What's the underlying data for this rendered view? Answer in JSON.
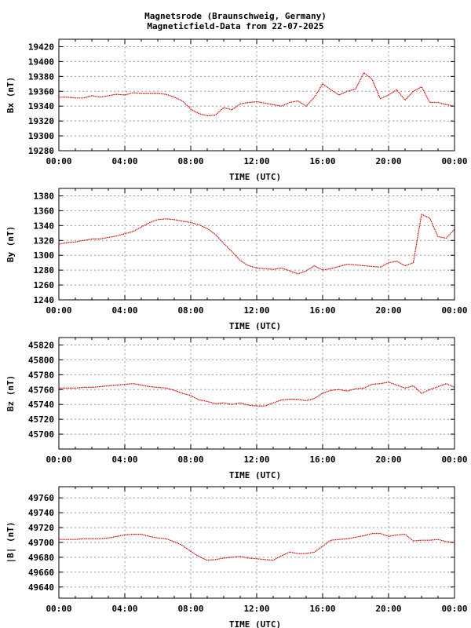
{
  "title_line1": "Magnetsrode (Braunschweig, Germany)",
  "title_line2": "Magneticfield-Data from 22-07-2025",
  "colors": {
    "trace": "#cc0000",
    "grid": "#999999",
    "axis": "#000000"
  },
  "chart_data": [
    {
      "type": "line",
      "ylabel": "Bx (nT)",
      "xlabel": "TIME (UTC)",
      "xlim": [
        0,
        24
      ],
      "xticks": [
        "00:00",
        "04:00",
        "08:00",
        "12:00",
        "16:00",
        "20:00",
        "00:00"
      ],
      "ylim": [
        19280,
        19430
      ],
      "yticks": [
        19280,
        19300,
        19320,
        19340,
        19360,
        19380,
        19400,
        19420
      ],
      "grid": true,
      "series": [
        {
          "x": [
            0,
            0.5,
            1,
            1.5,
            2,
            2.5,
            3,
            3.5,
            4,
            4.5,
            5,
            5.5,
            6,
            6.5,
            7,
            7.5,
            8,
            8.5,
            9,
            9.5,
            10,
            10.5,
            11,
            11.5,
            12,
            12.5,
            13,
            13.5,
            14,
            14.5,
            15,
            15.5,
            16,
            16.5,
            17,
            17.5,
            18,
            18.5,
            19,
            19.5,
            20,
            20.5,
            21,
            21.5,
            22,
            22.5,
            23,
            23.5,
            24
          ],
          "values": [
            19352,
            19352,
            19351,
            19351,
            19354,
            19352,
            19354,
            19356,
            19355,
            19358,
            19357,
            19357,
            19357,
            19356,
            19352,
            19347,
            19336,
            19330,
            19327,
            19328,
            19338,
            19335,
            19343,
            19345,
            19346,
            19344,
            19342,
            19340,
            19345,
            19347,
            19340,
            19352,
            19370,
            19362,
            19355,
            19360,
            19363,
            19385,
            19376,
            19350,
            19355,
            19362,
            19348,
            19360,
            19366,
            19345,
            19345,
            19342,
            19340
          ]
        }
      ]
    },
    {
      "type": "line",
      "ylabel": "By (nT)",
      "xlabel": "TIME (UTC)",
      "xlim": [
        0,
        24
      ],
      "xticks": [
        "00:00",
        "04:00",
        "08:00",
        "12:00",
        "16:00",
        "20:00",
        "00:00"
      ],
      "ylim": [
        1240,
        1390
      ],
      "yticks": [
        1240,
        1260,
        1280,
        1300,
        1320,
        1340,
        1360,
        1380
      ],
      "grid": true,
      "series": [
        {
          "x": [
            0,
            0.5,
            1,
            1.5,
            2,
            2.5,
            3,
            3.5,
            4,
            4.5,
            5,
            5.5,
            6,
            6.5,
            7,
            7.5,
            8,
            8.5,
            9,
            9.5,
            10,
            10.5,
            11,
            11.5,
            12,
            12.5,
            13,
            13.5,
            14,
            14.5,
            15,
            15.5,
            16,
            16.5,
            17,
            17.5,
            18,
            18.5,
            19,
            19.5,
            20,
            20.5,
            21,
            21.5,
            22,
            22.5,
            23,
            23.5,
            24
          ],
          "values": [
            1315,
            1317,
            1318,
            1320,
            1322,
            1322,
            1324,
            1326,
            1329,
            1332,
            1338,
            1344,
            1348,
            1349,
            1348,
            1346,
            1344,
            1341,
            1336,
            1328,
            1316,
            1305,
            1293,
            1286,
            1283,
            1282,
            1281,
            1283,
            1279,
            1275,
            1279,
            1286,
            1280,
            1282,
            1285,
            1288,
            1287,
            1286,
            1285,
            1284,
            1290,
            1292,
            1286,
            1290,
            1355,
            1350,
            1325,
            1323,
            1335
          ]
        }
      ]
    },
    {
      "type": "line",
      "ylabel": "Bz (nT)",
      "xlabel": "TIME (UTC)",
      "xlim": [
        0,
        24
      ],
      "xticks": [
        "00:00",
        "04:00",
        "08:00",
        "12:00",
        "16:00",
        "20:00",
        "00:00"
      ],
      "ylim": [
        45680,
        45830
      ],
      "yticks": [
        45700,
        45720,
        45740,
        45760,
        45780,
        45800,
        45820
      ],
      "grid": true,
      "series": [
        {
          "x": [
            0,
            0.5,
            1,
            1.5,
            2,
            2.5,
            3,
            3.5,
            4,
            4.5,
            5,
            5.5,
            6,
            6.5,
            7,
            7.5,
            8,
            8.5,
            9,
            9.5,
            10,
            10.5,
            11,
            11.5,
            12,
            12.5,
            13,
            13.5,
            14,
            14.5,
            15,
            15.5,
            16,
            16.5,
            17,
            17.5,
            18,
            18.5,
            19,
            19.5,
            20,
            20.5,
            21,
            21.5,
            22,
            22.5,
            23,
            23.5,
            24
          ],
          "values": [
            45762,
            45762,
            45762,
            45763,
            45763,
            45764,
            45765,
            45766,
            45767,
            45768,
            45766,
            45764,
            45763,
            45762,
            45759,
            45755,
            45752,
            45746,
            45744,
            45741,
            45742,
            45740,
            45742,
            45739,
            45738,
            45738,
            45742,
            45746,
            45747,
            45747,
            45745,
            45748,
            45755,
            45759,
            45760,
            45758,
            45761,
            45762,
            45767,
            45768,
            45770,
            45766,
            45762,
            45765,
            45755,
            45760,
            45764,
            45768,
            45763
          ]
        }
      ]
    },
    {
      "type": "line",
      "ylabel": "|B| (nT)",
      "xlabel": "TIME (UTC)",
      "xlim": [
        0,
        24
      ],
      "xticks": [
        "00:00",
        "04:00",
        "08:00",
        "12:00",
        "16:00",
        "20:00",
        "00:00"
      ],
      "ylim": [
        49625,
        49775
      ],
      "yticks": [
        49640,
        49660,
        49680,
        49700,
        49720,
        49740,
        49760
      ],
      "grid": true,
      "series": [
        {
          "x": [
            0,
            0.5,
            1,
            1.5,
            2,
            2.5,
            3,
            3.5,
            4,
            4.5,
            5,
            5.5,
            6,
            6.5,
            7,
            7.5,
            8,
            8.5,
            9,
            9.5,
            10,
            10.5,
            11,
            11.5,
            12,
            12.5,
            13,
            13.5,
            14,
            14.5,
            15,
            15.5,
            16,
            16.5,
            17,
            17.5,
            18,
            18.5,
            19,
            19.5,
            20,
            20.5,
            21,
            21.5,
            22,
            22.5,
            23,
            23.5,
            24
          ],
          "values": [
            49704,
            49704,
            49704,
            49705,
            49705,
            49705,
            49706,
            49708,
            49710,
            49711,
            49711,
            49708,
            49706,
            49705,
            49701,
            49696,
            49688,
            49681,
            49676,
            49677,
            49679,
            49680,
            49681,
            49679,
            49678,
            49677,
            49676,
            49682,
            49687,
            49685,
            49685,
            49687,
            49695,
            49703,
            49704,
            49705,
            49707,
            49709,
            49712,
            49712,
            49708,
            49710,
            49711,
            49702,
            49703,
            49703,
            49704,
            49701,
            49700
          ]
        }
      ]
    }
  ]
}
